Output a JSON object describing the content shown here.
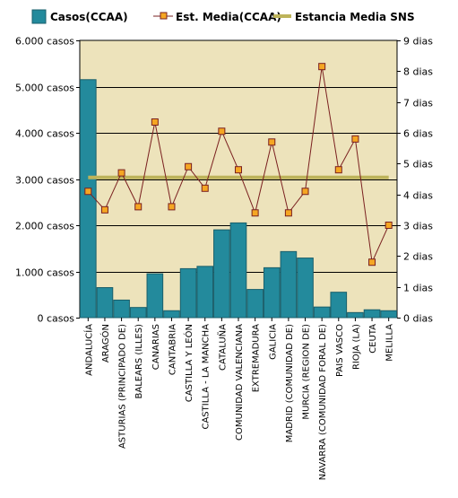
{
  "chart_data": {
    "type": "bar",
    "categories": [
      "ANDALUCÍA",
      "ARAGÓN",
      "ASTURIAS (PRINCIPADO DE)",
      "BALEARS (ILLES)",
      "CANARIAS",
      "CANTABRIA",
      "CASTILLA Y LEÓN",
      "CASTILLA - LA MANCHA",
      "CATALUÑA",
      "COMUNIDAD VALENCIANA",
      "EXTREMADURA",
      "GALICIA",
      "MADRID (COMUNIDAD DE)",
      "MURCIA (REGION DE)",
      "NAVARRA (COMUNIDAD FORAL DE)",
      "PAIS VASCO",
      "RIOJA (LA)",
      "CEUTA",
      "MELILLA"
    ],
    "series": [
      {
        "name": "Casos(CCAA)",
        "type": "bar",
        "axis": "left",
        "values": [
          5150,
          650,
          380,
          220,
          950,
          150,
          1060,
          1110,
          1900,
          2050,
          610,
          1080,
          1430,
          1290,
          230,
          550,
          110,
          170,
          150
        ]
      },
      {
        "name": "Est.  Media(CCAA)",
        "type": "line",
        "axis": "right",
        "values": [
          4.1,
          3.5,
          4.7,
          3.6,
          6.35,
          3.6,
          4.9,
          4.2,
          6.05,
          4.8,
          3.4,
          5.7,
          3.4,
          4.1,
          8.15,
          4.8,
          5.8,
          1.8,
          3.0
        ]
      },
      {
        "name": "Estancia Media SNS",
        "type": "reference",
        "axis": "right",
        "value": 4.55
      }
    ],
    "left_axis": {
      "min": 0,
      "max": 6000,
      "ticks": [
        "0 casos",
        "1.000 casos",
        "2.000 casos",
        "3.000 casos",
        "4.000 casos",
        "5.000 casos",
        "6.000 casos"
      ],
      "tick_values": [
        0,
        1000,
        2000,
        3000,
        4000,
        5000,
        6000
      ]
    },
    "right_axis": {
      "min": 0,
      "max": 9,
      "ticks": [
        "0 dias",
        "1 dias",
        "2 dias",
        "3 dias",
        "4 dias",
        "5 dias",
        "6 dias",
        "7 dias",
        "8 dias",
        "9 dias"
      ],
      "tick_values": [
        0,
        1,
        2,
        3,
        4,
        5,
        6,
        7,
        8,
        9
      ]
    },
    "grid": true,
    "legend_position": "top"
  },
  "colors": {
    "plot_background": "#ede3bb",
    "bar_fill": "#238a9c",
    "bar_stroke": "#1a5f6b",
    "line": "#7a2020",
    "marker_fill": "#f5a623",
    "marker_stroke": "#7a2020",
    "reference_line": "#bdb35a",
    "grid": "#000000"
  }
}
